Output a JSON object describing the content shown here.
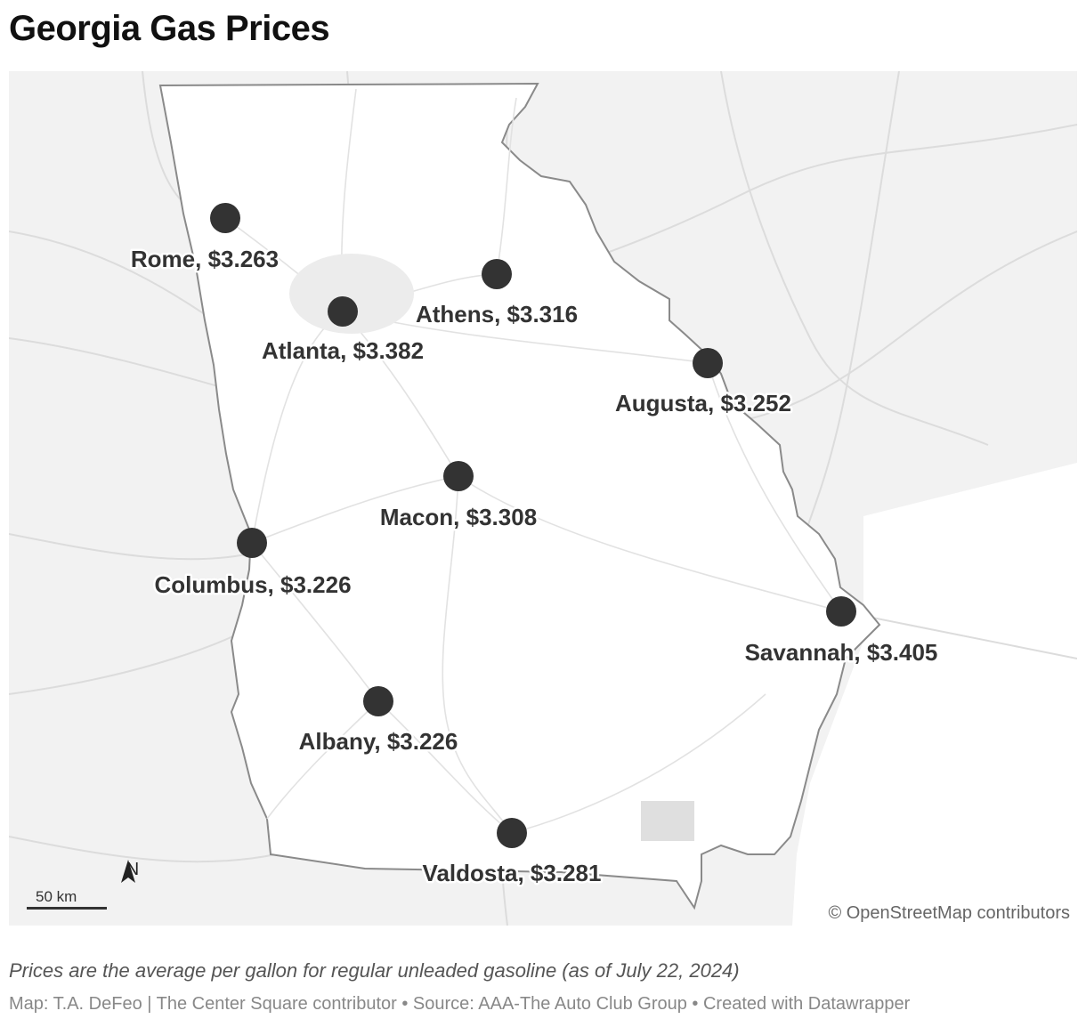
{
  "title": "Georgia Gas Prices",
  "map": {
    "region": "Georgia",
    "marker_color": "#333333",
    "land_color": "#f2f2f2",
    "state_fill": "#ffffff",
    "cities": [
      {
        "name": "Rome",
        "price": "$3.263",
        "label": "Rome, $3.263"
      },
      {
        "name": "Atlanta",
        "price": "$3.382",
        "label": "Atlanta, $3.382"
      },
      {
        "name": "Athens",
        "price": "$3.316",
        "label": "Athens, $3.316"
      },
      {
        "name": "Augusta",
        "price": "$3.252",
        "label": "Augusta, $3.252"
      },
      {
        "name": "Macon",
        "price": "$3.308",
        "label": "Macon, $3.308"
      },
      {
        "name": "Columbus",
        "price": "$3.226",
        "label": "Columbus, $3.226"
      },
      {
        "name": "Savannah",
        "price": "$3.405",
        "label": "Savannah, $3.405"
      },
      {
        "name": "Albany",
        "price": "$3.226",
        "label": "Albany, $3.226"
      },
      {
        "name": "Valdosta",
        "price": "$3.281",
        "label": "Valdosta, $3.281"
      }
    ],
    "scale_label": "50 km",
    "north_label": "N",
    "attribution": "© OpenStreetMap contributors"
  },
  "footnote": "Prices are the average per gallon for regular unleaded gasoline (as of July 22, 2024)",
  "credits": "Map: T.A. DeFeo | The Center Square contributor • Source: AAA-The Auto Club Group • Created with Datawrapper"
}
